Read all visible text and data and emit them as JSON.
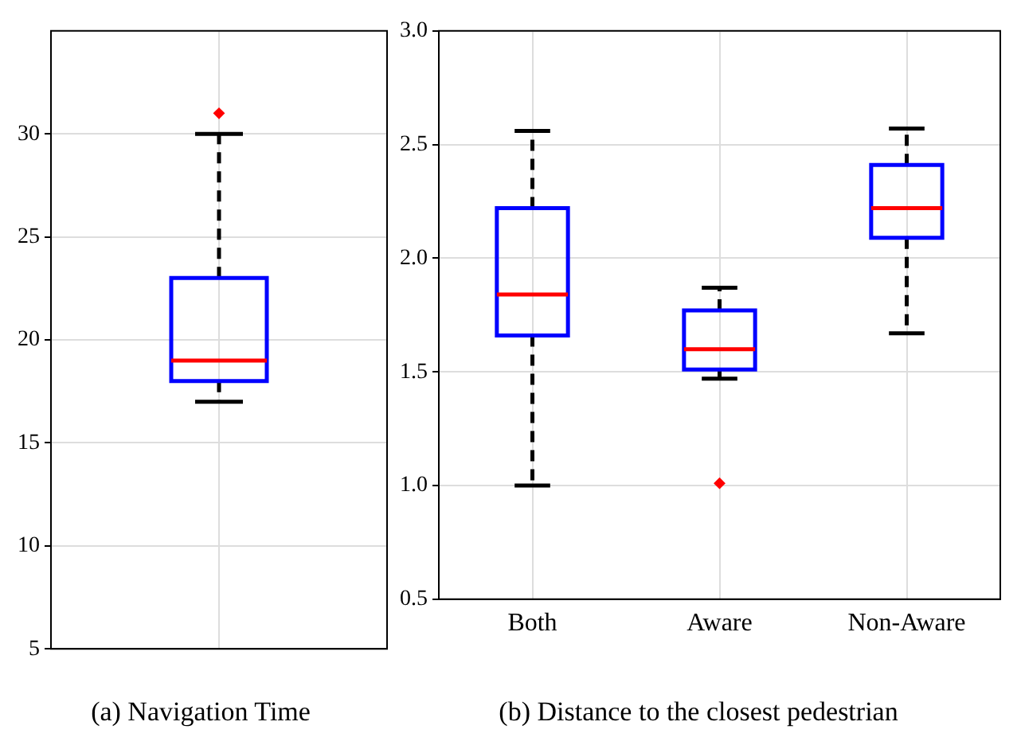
{
  "chart_data": [
    {
      "type": "box",
      "title": "(a) Navigation Time",
      "categories": [
        null
      ],
      "ylim": [
        5,
        35
      ],
      "yticks": [
        5,
        10,
        15,
        20,
        25,
        30
      ],
      "grid": true,
      "tick_labels": "y",
      "boxes": [
        {
          "low": 17,
          "q1": 18,
          "median": 19,
          "q3": 23,
          "high": 30,
          "outliers": [
            31
          ]
        }
      ]
    },
    {
      "type": "box",
      "title": "(b) Distance to the closest pedestrian",
      "categories": [
        "Both",
        "Aware",
        "Non-Aware"
      ],
      "ylim": [
        0.5,
        3.0
      ],
      "yticks": [
        {
          "value": 0.5,
          "label": "0.5"
        },
        {
          "value": 1.0,
          "label": "1.0"
        },
        {
          "value": 1.5,
          "label": "1.5"
        },
        {
          "value": 2.0,
          "label": "2.0"
        },
        {
          "value": 2.5,
          "label": "2.5"
        },
        {
          "value": 3.0,
          "label": "3.0"
        }
      ],
      "grid": true,
      "boxes": [
        {
          "low": 1.0,
          "q1": 1.66,
          "median": 1.84,
          "q3": 2.22,
          "high": 2.56
        },
        {
          "low": 1.47,
          "q1": 1.51,
          "median": 1.6,
          "q3": 1.77,
          "high": 1.87,
          "outliers": [
            1.01
          ]
        },
        {
          "low": 1.67,
          "q1": 2.09,
          "median": 2.22,
          "q3": 2.41,
          "high": 2.57
        }
      ]
    }
  ]
}
